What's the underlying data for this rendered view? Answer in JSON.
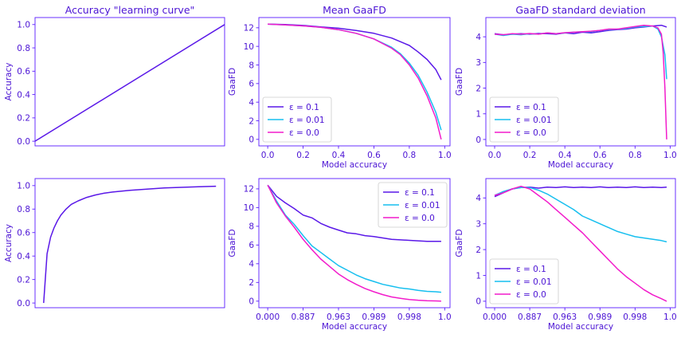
{
  "colors": {
    "text": "#4b13d4",
    "axes": "#5a1cff",
    "eps01": "#5a18e8",
    "eps001": "#16bfef",
    "eps00": "#f21ccb",
    "curve": "#5a18e8"
  },
  "chart_data": [
    {
      "id": "top-left",
      "type": "line",
      "title": "Accuracy \"learning curve\"",
      "xlabel": "",
      "ylabel": "Accuracy",
      "xlim": [
        0,
        1
      ],
      "ylim": [
        -0.04,
        1.06
      ],
      "xticks": [],
      "yticks": [
        0.0,
        0.2,
        0.4,
        0.6,
        0.8,
        1.0
      ],
      "ytick_labels": [
        "0.0",
        "0.2",
        "0.4",
        "0.6",
        "0.8",
        "1.0"
      ],
      "grid": false,
      "legend": null,
      "series": [
        {
          "color": "curve",
          "x": [
            0,
            1
          ],
          "y": [
            0,
            1
          ]
        }
      ]
    },
    {
      "id": "top-mid",
      "type": "line",
      "title": "Mean GaaFD",
      "xlabel": "Model accuracy",
      "ylabel": "GaaFD",
      "xlim": [
        -0.05,
        1.03
      ],
      "ylim": [
        -0.7,
        13.1
      ],
      "xticks": [
        0,
        0.2,
        0.4,
        0.6,
        0.8,
        1.0
      ],
      "xtick_labels": [
        "0.0",
        "0.2",
        "0.4",
        "0.6",
        "0.8",
        "1.0"
      ],
      "yticks": [
        0,
        2,
        4,
        6,
        8,
        10,
        12
      ],
      "ytick_labels": [
        "0",
        "2",
        "4",
        "6",
        "8",
        "10",
        "12"
      ],
      "grid": false,
      "legend": "bottom-left",
      "series": [
        {
          "name": "ε = 0.1",
          "color": "eps01",
          "x": [
            0,
            0.1,
            0.2,
            0.3,
            0.4,
            0.5,
            0.6,
            0.7,
            0.8,
            0.85,
            0.9,
            0.95,
            0.98
          ],
          "y": [
            12.4,
            12.35,
            12.25,
            12.1,
            11.95,
            11.7,
            11.4,
            10.9,
            10.1,
            9.4,
            8.6,
            7.5,
            6.4
          ]
        },
        {
          "name": "ε = 0.01",
          "color": "eps001",
          "x": [
            0,
            0.1,
            0.2,
            0.3,
            0.4,
            0.5,
            0.6,
            0.7,
            0.75,
            0.8,
            0.85,
            0.9,
            0.95,
            0.98
          ],
          "y": [
            12.4,
            12.3,
            12.2,
            12.05,
            11.8,
            11.4,
            10.8,
            9.9,
            9.2,
            8.2,
            6.9,
            5.1,
            2.9,
            1.0
          ]
        },
        {
          "name": "ε = 0.0",
          "color": "eps00",
          "x": [
            0,
            0.1,
            0.2,
            0.3,
            0.4,
            0.5,
            0.6,
            0.7,
            0.75,
            0.8,
            0.85,
            0.9,
            0.95,
            0.98
          ],
          "y": [
            12.4,
            12.3,
            12.2,
            12.05,
            11.8,
            11.4,
            10.8,
            9.8,
            9.1,
            8.0,
            6.6,
            4.7,
            2.3,
            0.0
          ]
        }
      ]
    },
    {
      "id": "top-right",
      "type": "line",
      "title": "GaaFD standard deviation",
      "xlabel": "Model accuracy",
      "ylabel": "GaaFD",
      "xlim": [
        -0.05,
        1.03
      ],
      "ylim": [
        -0.25,
        4.75
      ],
      "xticks": [
        0,
        0.2,
        0.4,
        0.6,
        0.8,
        1.0
      ],
      "xtick_labels": [
        "0.0",
        "0.2",
        "0.4",
        "0.6",
        "0.8",
        "1.0"
      ],
      "yticks": [
        0,
        1,
        2,
        3,
        4
      ],
      "ytick_labels": [
        "0",
        "1",
        "2",
        "3",
        "4"
      ],
      "grid": false,
      "legend": "bottom-left",
      "series": [
        {
          "name": "ε = 0.1",
          "color": "eps01",
          "x": [
            0,
            0.05,
            0.1,
            0.15,
            0.2,
            0.25,
            0.3,
            0.35,
            0.4,
            0.45,
            0.5,
            0.55,
            0.6,
            0.65,
            0.7,
            0.75,
            0.8,
            0.85,
            0.9,
            0.95,
            0.98
          ],
          "y": [
            4.12,
            4.08,
            4.1,
            4.12,
            4.1,
            4.13,
            4.12,
            4.1,
            4.15,
            4.12,
            4.18,
            4.15,
            4.2,
            4.25,
            4.28,
            4.3,
            4.35,
            4.38,
            4.42,
            4.45,
            4.38
          ]
        },
        {
          "name": "ε = 0.01",
          "color": "eps001",
          "x": [
            0,
            0.05,
            0.1,
            0.15,
            0.2,
            0.25,
            0.3,
            0.35,
            0.4,
            0.45,
            0.5,
            0.55,
            0.6,
            0.65,
            0.7,
            0.75,
            0.8,
            0.85,
            0.9,
            0.93,
            0.95,
            0.97,
            0.98
          ],
          "y": [
            4.1,
            4.05,
            4.1,
            4.08,
            4.12,
            4.1,
            4.15,
            4.12,
            4.15,
            4.18,
            4.2,
            4.2,
            4.25,
            4.28,
            4.3,
            4.32,
            4.38,
            4.4,
            4.42,
            4.3,
            4.0,
            3.3,
            2.35
          ]
        },
        {
          "name": "ε = 0.0",
          "color": "eps00",
          "x": [
            0,
            0.05,
            0.1,
            0.15,
            0.2,
            0.25,
            0.3,
            0.35,
            0.4,
            0.45,
            0.5,
            0.55,
            0.6,
            0.65,
            0.7,
            0.75,
            0.8,
            0.85,
            0.9,
            0.93,
            0.95,
            0.96,
            0.97,
            0.98
          ],
          "y": [
            4.1,
            4.08,
            4.12,
            4.1,
            4.13,
            4.1,
            4.15,
            4.12,
            4.16,
            4.18,
            4.2,
            4.22,
            4.25,
            4.3,
            4.3,
            4.35,
            4.4,
            4.45,
            4.42,
            4.35,
            4.1,
            3.4,
            2.0,
            0.0
          ]
        }
      ]
    },
    {
      "id": "bottom-left",
      "type": "line",
      "title": "",
      "xlabel": "",
      "ylabel": "Accuracy",
      "xlim": [
        -0.05,
        1.05
      ],
      "ylim": [
        -0.04,
        1.06
      ],
      "xticks": [],
      "yticks": [
        0.0,
        0.2,
        0.4,
        0.6,
        0.8,
        1.0
      ],
      "ytick_labels": [
        "0.0",
        "0.2",
        "0.4",
        "0.6",
        "0.8",
        "1.0"
      ],
      "grid": false,
      "legend": null,
      "series": [
        {
          "color": "curve",
          "x": [
            0,
            0.02,
            0.04,
            0.06,
            0.08,
            0.1,
            0.13,
            0.16,
            0.2,
            0.25,
            0.3,
            0.35,
            0.4,
            0.5,
            0.6,
            0.7,
            0.8,
            0.9,
            1.0
          ],
          "y": [
            0.0,
            0.42,
            0.56,
            0.64,
            0.7,
            0.75,
            0.8,
            0.84,
            0.87,
            0.9,
            0.92,
            0.935,
            0.945,
            0.96,
            0.97,
            0.98,
            0.985,
            0.99,
            0.995
          ]
        }
      ]
    },
    {
      "id": "bottom-mid",
      "type": "line",
      "title": "",
      "xlabel": "Model accuracy",
      "ylabel": "GaaFD",
      "xlim": [
        -0.05,
        1.03
      ],
      "ylim": [
        -0.7,
        13.1
      ],
      "xticks": [
        0,
        0.2,
        0.4,
        0.6,
        0.8,
        1.0
      ],
      "xtick_labels": [
        "0.000",
        "0.887",
        "0.963",
        "0.989",
        "0.998",
        "1.0"
      ],
      "yticks": [
        0,
        2,
        4,
        6,
        8,
        10,
        12
      ],
      "ytick_labels": [
        "0",
        "2",
        "4",
        "6",
        "8",
        "10",
        "12"
      ],
      "grid": false,
      "legend": "top-right",
      "series": [
        {
          "name": "ε = 0.1",
          "color": "eps01",
          "x": [
            0,
            0.05,
            0.1,
            0.15,
            0.2,
            0.25,
            0.3,
            0.35,
            0.4,
            0.45,
            0.5,
            0.55,
            0.6,
            0.65,
            0.7,
            0.75,
            0.8,
            0.85,
            0.9,
            0.95,
            0.98
          ],
          "y": [
            12.4,
            11.2,
            10.5,
            9.9,
            9.2,
            8.9,
            8.3,
            7.9,
            7.6,
            7.3,
            7.2,
            7.0,
            6.9,
            6.75,
            6.6,
            6.55,
            6.5,
            6.45,
            6.4,
            6.4,
            6.4
          ]
        },
        {
          "name": "ε = 0.01",
          "color": "eps001",
          "x": [
            0,
            0.05,
            0.1,
            0.15,
            0.2,
            0.25,
            0.3,
            0.35,
            0.4,
            0.45,
            0.5,
            0.55,
            0.6,
            0.65,
            0.7,
            0.75,
            0.8,
            0.85,
            0.9,
            0.95,
            0.98
          ],
          "y": [
            12.4,
            10.7,
            9.2,
            8.2,
            7.0,
            5.9,
            5.2,
            4.5,
            3.8,
            3.3,
            2.8,
            2.4,
            2.1,
            1.8,
            1.6,
            1.4,
            1.3,
            1.15,
            1.05,
            1.0,
            0.95
          ]
        },
        {
          "name": "ε = 0.0",
          "color": "eps00",
          "x": [
            0,
            0.05,
            0.1,
            0.15,
            0.2,
            0.25,
            0.3,
            0.35,
            0.4,
            0.45,
            0.5,
            0.55,
            0.6,
            0.65,
            0.7,
            0.75,
            0.8,
            0.85,
            0.9,
            0.95,
            0.98
          ],
          "y": [
            12.4,
            10.5,
            9.1,
            7.9,
            6.6,
            5.5,
            4.5,
            3.7,
            2.9,
            2.3,
            1.8,
            1.35,
            1.0,
            0.7,
            0.45,
            0.3,
            0.18,
            0.1,
            0.05,
            0.02,
            0.0
          ]
        }
      ]
    },
    {
      "id": "bottom-right",
      "type": "line",
      "title": "",
      "xlabel": "Model accuracy",
      "ylabel": "GaaFD",
      "xlim": [
        -0.05,
        1.03
      ],
      "ylim": [
        -0.25,
        4.75
      ],
      "xticks": [
        0,
        0.2,
        0.4,
        0.6,
        0.8,
        1.0
      ],
      "xtick_labels": [
        "0.000",
        "0.887",
        "0.963",
        "0.989",
        "0.998",
        "1.0"
      ],
      "yticks": [
        0,
        1,
        2,
        3,
        4
      ],
      "ytick_labels": [
        "0",
        "1",
        "2",
        "3",
        "4"
      ],
      "grid": false,
      "legend": "bottom-left",
      "series": [
        {
          "name": "ε = 0.1",
          "color": "eps01",
          "x": [
            0,
            0.05,
            0.1,
            0.15,
            0.2,
            0.25,
            0.3,
            0.35,
            0.4,
            0.45,
            0.5,
            0.55,
            0.6,
            0.65,
            0.7,
            0.75,
            0.8,
            0.85,
            0.9,
            0.95,
            0.98
          ],
          "y": [
            4.05,
            4.2,
            4.35,
            4.4,
            4.42,
            4.38,
            4.42,
            4.4,
            4.43,
            4.4,
            4.42,
            4.4,
            4.43,
            4.4,
            4.42,
            4.4,
            4.43,
            4.4,
            4.42,
            4.4,
            4.42
          ]
        },
        {
          "name": "ε = 0.01",
          "color": "eps001",
          "x": [
            0,
            0.05,
            0.1,
            0.15,
            0.2,
            0.25,
            0.3,
            0.35,
            0.4,
            0.45,
            0.5,
            0.55,
            0.6,
            0.65,
            0.7,
            0.75,
            0.8,
            0.85,
            0.9,
            0.95,
            0.98
          ],
          "y": [
            4.1,
            4.25,
            4.35,
            4.4,
            4.4,
            4.3,
            4.15,
            3.95,
            3.75,
            3.55,
            3.3,
            3.15,
            3.0,
            2.85,
            2.7,
            2.6,
            2.5,
            2.45,
            2.4,
            2.35,
            2.3
          ]
        },
        {
          "name": "ε = 0.0",
          "color": "eps00",
          "x": [
            0,
            0.05,
            0.1,
            0.15,
            0.2,
            0.25,
            0.3,
            0.35,
            0.4,
            0.45,
            0.5,
            0.55,
            0.6,
            0.65,
            0.7,
            0.75,
            0.8,
            0.85,
            0.9,
            0.95,
            0.98
          ],
          "y": [
            4.1,
            4.2,
            4.35,
            4.45,
            4.35,
            4.1,
            3.85,
            3.55,
            3.25,
            2.95,
            2.65,
            2.3,
            1.95,
            1.6,
            1.25,
            0.95,
            0.7,
            0.45,
            0.25,
            0.1,
            0.0
          ]
        }
      ]
    }
  ]
}
